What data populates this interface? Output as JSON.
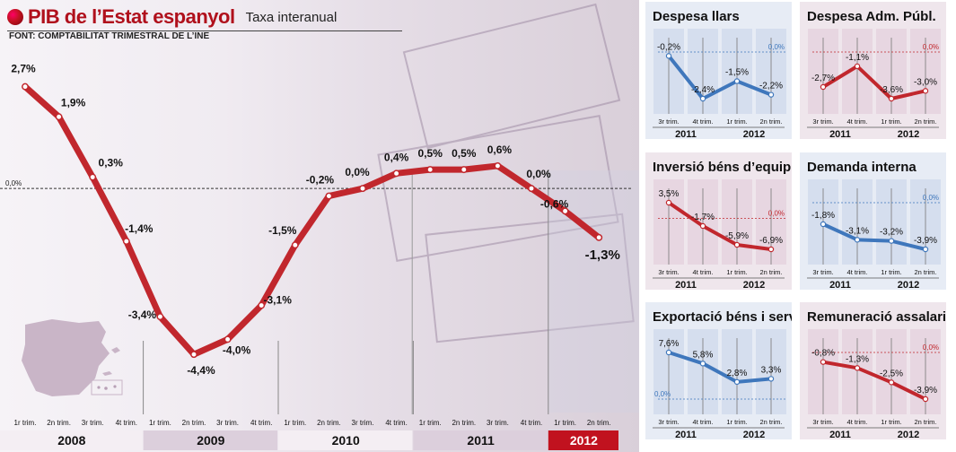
{
  "header": {
    "title": "PIB de l’Estat espanyol",
    "subtitle": "Taxa interanual",
    "source": "FONT: COMPTABILITAT TRIMESTRAL DE L’INE"
  },
  "colors": {
    "red": "#c1272d",
    "blue": "#3f77bc",
    "ref_red": "#c1121f",
    "ref_blue": "#3f77bc"
  },
  "icons": {
    "title_bullet": "red-circle-icon",
    "map": "spain-map-icon"
  },
  "chart_data": [
    {
      "id": "main",
      "type": "line",
      "title": "PIB de l’Estat espanyol",
      "categories": [
        "1r trim.",
        "2n trim.",
        "3r trim.",
        "4t trim.",
        "1r trim.",
        "2n trim.",
        "3r trim.",
        "4t trim.",
        "1r trim.",
        "2n trim.",
        "3r trim.",
        "4t trim.",
        "1r trim.",
        "2n trim.",
        "3r trim.",
        "4t trim.",
        "1r trim.",
        "2n trim."
      ],
      "years": [
        "2008",
        "2009",
        "2010",
        "2011",
        "2012"
      ],
      "values": [
        2.7,
        1.9,
        0.3,
        -1.4,
        -3.4,
        -4.4,
        -4.0,
        -3.1,
        -1.5,
        -0.2,
        0.0,
        0.4,
        0.5,
        0.5,
        0.6,
        0.0,
        -0.6,
        -1.3
      ],
      "labels": [
        "2,7%",
        "1,9%",
        "0,3%",
        "-1,4%",
        "-3,4%",
        "-4,4%",
        "-4,0%",
        "-3,1%",
        "-1,5%",
        "-0,2%",
        "0,0%",
        "0,4%",
        "0,5%",
        "0,5%",
        "0,6%",
        "0,0%",
        "-0,6%",
        "-1,3%"
      ],
      "reference_label": "0,0%",
      "ylim": [
        -4.8,
        3.0
      ]
    },
    {
      "id": "despesa-llars",
      "type": "line",
      "title": "Despesa llars",
      "color": "blue",
      "categories": [
        "3r trim.",
        "4t trim.",
        "1r trim.",
        "2n trim."
      ],
      "years": [
        "2011",
        "2012"
      ],
      "values": [
        -0.2,
        -2.4,
        -1.5,
        -2.2
      ],
      "labels": [
        "-0,2%",
        "-2,4%",
        "-1,5%",
        "-2,2%"
      ],
      "reference": 0.0,
      "reference_label": "0,0%"
    },
    {
      "id": "despesa-adm-publ",
      "type": "line",
      "title": "Despesa Adm. Públ.",
      "color": "red",
      "categories": [
        "3r trim.",
        "4t trim.",
        "1r trim.",
        "2n trim."
      ],
      "years": [
        "2011",
        "2012"
      ],
      "values": [
        -2.7,
        -1.1,
        -3.6,
        -3.0
      ],
      "labels": [
        "-2,7%",
        "-1,1%",
        "-3,6%",
        "-3,0%"
      ],
      "reference": 0.0,
      "reference_label": "0,0%"
    },
    {
      "id": "inversio-bens-equip",
      "type": "line",
      "title": "Inversió béns d’equip",
      "color": "red",
      "categories": [
        "3r trim.",
        "4t trim.",
        "1r trim.",
        "2n trim."
      ],
      "years": [
        "2011",
        "2012"
      ],
      "values": [
        3.5,
        -1.7,
        -5.9,
        -6.9
      ],
      "labels": [
        "3,5%",
        "-1,7%",
        "-5,9%",
        "-6,9%"
      ],
      "reference": 0.0,
      "reference_label": "0,0%"
    },
    {
      "id": "demanda-interna",
      "type": "line",
      "title": "Demanda interna",
      "color": "blue",
      "categories": [
        "3r trim.",
        "4t trim.",
        "1r trim.",
        "2n trim."
      ],
      "years": [
        "2011",
        "2012"
      ],
      "values": [
        -1.8,
        -3.1,
        -3.2,
        -3.9
      ],
      "labels": [
        "-1,8%",
        "-3,1%",
        "-3,2%",
        "-3,9%"
      ],
      "reference": 0.0,
      "reference_label": "0,0%"
    },
    {
      "id": "exportacio-bens-serveis",
      "type": "line",
      "title": "Exportació béns i serveis",
      "color": "blue",
      "categories": [
        "3r trim.",
        "4t trim.",
        "1r trim.",
        "2n trim."
      ],
      "years": [
        "2011",
        "2012"
      ],
      "values": [
        7.6,
        5.8,
        2.8,
        3.3
      ],
      "labels": [
        "7,6%",
        "5,8%",
        "2,8%",
        "3,3%"
      ],
      "reference": 0.0,
      "reference_label": "0,0%"
    },
    {
      "id": "remuneracio-assalariats",
      "type": "line",
      "title": "Remuneració assalariats",
      "color": "red",
      "categories": [
        "3r trim.",
        "4t trim.",
        "1r trim.",
        "2n trim."
      ],
      "years": [
        "2011",
        "2012"
      ],
      "values": [
        -0.8,
        -1.3,
        -2.5,
        -3.9
      ],
      "labels": [
        "-0,8%",
        "-1,3%",
        "-2,5%",
        "-3,9%"
      ],
      "reference": 0.0,
      "reference_label": "0,0%"
    }
  ]
}
